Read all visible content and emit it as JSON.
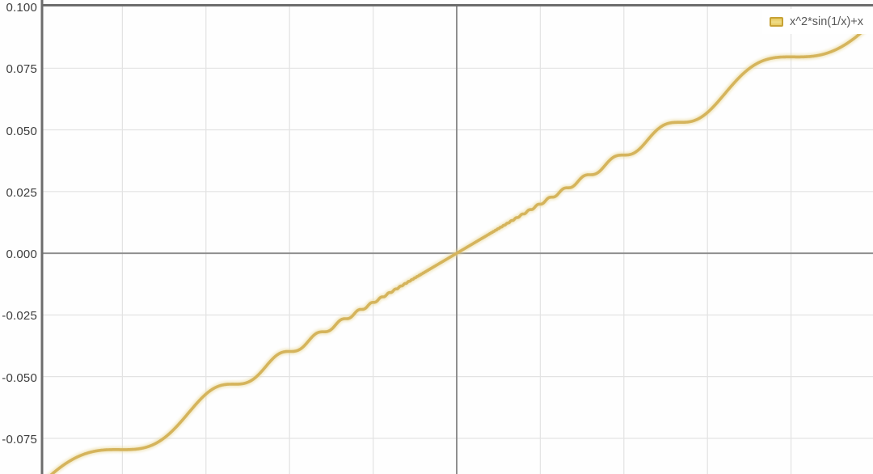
{
  "chart_data": {
    "type": "line",
    "title": "",
    "grid": true,
    "legend_position": "top-right",
    "legend": {
      "label": "x^2*sin(1/x)+x"
    },
    "series": [
      {
        "name": "x^2*sin(1/x)+x",
        "expression": "x^2*sin(1/x)+x",
        "color": "#d5b45c",
        "glow_color": "#e9d896",
        "line_width": 3.6
      }
    ],
    "x_min": -0.09923,
    "x_max": 0.09961,
    "y_min": -0.08945,
    "y_max": 0.1,
    "x_grid_step": 0.02,
    "y_grid_step": 0.025,
    "y_ticks": [
      {
        "value": 0.1,
        "label": "0.100"
      },
      {
        "value": 0.075,
        "label": "0.075"
      },
      {
        "value": 0.05,
        "label": "0.050"
      },
      {
        "value": 0.025,
        "label": "0.025"
      },
      {
        "value": 0.0,
        "label": "0.000"
      },
      {
        "value": -0.025,
        "label": "-0.025"
      },
      {
        "value": -0.05,
        "label": "-0.050"
      },
      {
        "value": -0.075,
        "label": "-0.075"
      }
    ],
    "notable_points": {
      "origin_crossing": [
        0,
        0
      ],
      "flat_shelves_x": [
        -0.0796,
        -0.0531,
        -0.0398,
        0.0398,
        0.0531,
        0.0796
      ]
    },
    "colors": {
      "grid_color": "#e3e3e3",
      "axis_color": "#8f8f8f",
      "border_color": "#6d6d6d",
      "label_color": "#3d3d3d",
      "plot_background": "#fefefe",
      "legend_swatch_fill": "#e8cb5f",
      "legend_swatch_border": "#c7a236"
    }
  }
}
